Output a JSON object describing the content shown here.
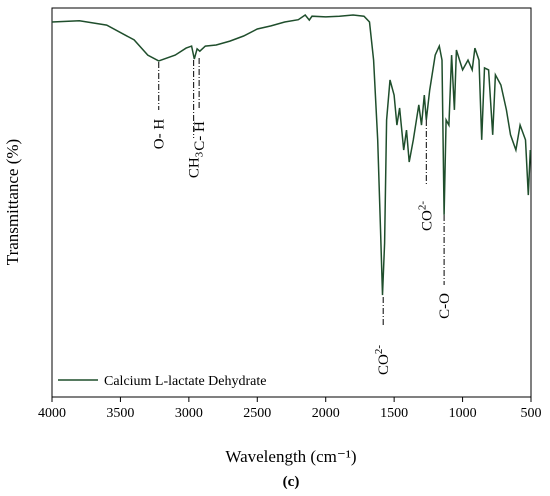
{
  "chart_data": {
    "type": "line",
    "xlabel": "Wavelength (cm⁻¹)",
    "ylabel": "Transmittance (%)",
    "caption": "(c)",
    "xlim": [
      4000,
      500
    ],
    "xticks": [
      4000,
      3500,
      3000,
      2500,
      2000,
      1500,
      1000,
      500
    ],
    "ylim": [
      0,
      100
    ],
    "legend": "lower left",
    "x": [
      4000,
      3800,
      3600,
      3400,
      3300,
      3220,
      3100,
      3020,
      2980,
      2960,
      2940,
      2920,
      2880,
      2800,
      2700,
      2600,
      2500,
      2400,
      2300,
      2200,
      2150,
      2120,
      2100,
      2000,
      1900,
      1800,
      1720,
      1680,
      1650,
      1620,
      1600,
      1585,
      1570,
      1555,
      1530,
      1500,
      1480,
      1460,
      1430,
      1410,
      1390,
      1360,
      1320,
      1300,
      1280,
      1265,
      1240,
      1200,
      1170,
      1150,
      1135,
      1120,
      1100,
      1080,
      1060,
      1045,
      1000,
      960,
      930,
      910,
      880,
      860,
      840,
      810,
      780,
      760,
      720,
      680,
      650,
      610,
      580,
      540,
      520,
      505
    ],
    "series": [
      {
        "name": "Calcium L-lactate Dehydrate",
        "color": "#1f4e2c",
        "values": [
          96.4,
          96.7,
          95.6,
          91.8,
          87.9,
          86.4,
          87.9,
          89.7,
          90.2,
          86.9,
          89.5,
          88.9,
          90.2,
          90.5,
          91.5,
          92.8,
          94.6,
          95.4,
          96.4,
          97.0,
          98.2,
          96.9,
          97.9,
          97.7,
          97.9,
          98.2,
          97.9,
          96.4,
          86.6,
          66.1,
          43.2,
          26.2,
          39.6,
          71.2,
          81.5,
          77.6,
          69.9,
          74.3,
          63.5,
          68.6,
          60.4,
          66.1,
          75.1,
          69.9,
          77.6,
          71.2,
          78.9,
          87.9,
          90.2,
          86.6,
          46.8,
          71.2,
          69.9,
          87.9,
          73.8,
          89.2,
          84.1,
          86.6,
          84.1,
          89.7,
          86.6,
          66.1,
          84.6,
          84.1,
          67.4,
          82.8,
          80.2,
          73.8,
          67.4,
          63.5,
          69.9,
          66.1,
          51.9,
          63.5
        ]
      }
    ],
    "annotations": [
      {
        "label": "O- H",
        "x": 3220
      },
      {
        "label": "CH",
        "subscript": "3",
        "x": 2965
      },
      {
        "label": "C- H",
        "x": 2925
      },
      {
        "label": "CO",
        "superscript": "2-",
        "x": 1580
      },
      {
        "label": "CO",
        "superscript": "2-",
        "x": 1265
      },
      {
        "label": "C-O",
        "x": 1135
      }
    ]
  }
}
